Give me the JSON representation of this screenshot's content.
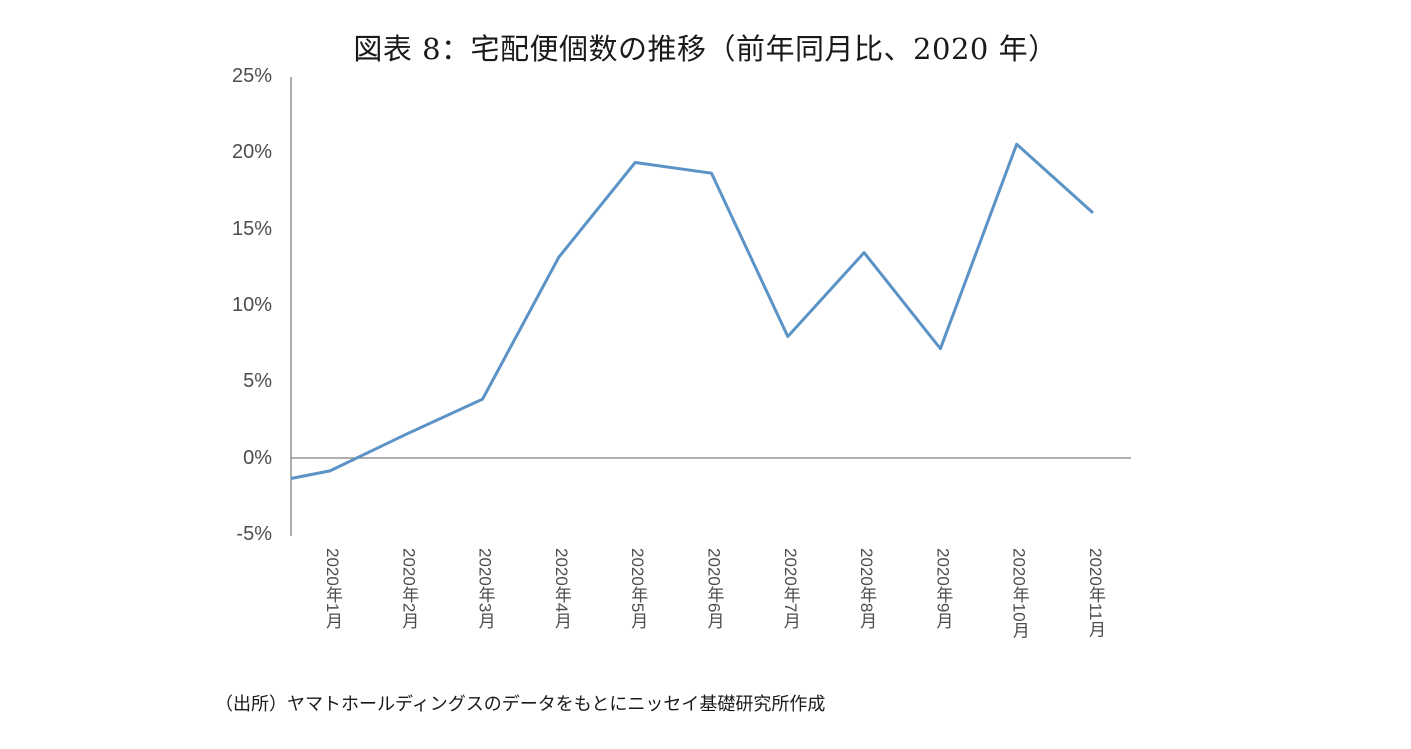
{
  "title": "図表 8：宅配便個数の推移（前年同月比、2020 年）",
  "source": "（出所）ヤマトホールディングスのデータをもとにニッセイ基礎研究所作成",
  "colors": {
    "line": "#5b93c6",
    "axis": "#808080",
    "text": "#4d4d4d"
  },
  "y_ticks": [
    "25%",
    "20%",
    "15%",
    "10%",
    "5%",
    "0%",
    "-5%"
  ],
  "x_ticks": [
    "2020年1月",
    "2020年2月",
    "2020年3月",
    "2020年4月",
    "2020年5月",
    "2020年6月",
    "2020年7月",
    "2020年8月",
    "2020年9月",
    "2020年10月",
    "2020年11月"
  ],
  "chart_data": {
    "type": "line",
    "title": "図表 8：宅配便個数の推移（前年同月比、2020 年）",
    "xlabel": "",
    "ylabel": "",
    "categories": [
      "2020年1月",
      "2020年2月",
      "2020年3月",
      "2020年4月",
      "2020年5月",
      "2020年6月",
      "2020年7月",
      "2020年8月",
      "2020年9月",
      "2020年10月",
      "2020年11月"
    ],
    "series": [
      {
        "name": "宅配便個数（前年同月比）",
        "values": [
          -0.8,
          1.6,
          3.9,
          13.2,
          19.4,
          18.7,
          8.0,
          13.5,
          7.2,
          20.6,
          16.1
        ]
      }
    ],
    "line_start_at_axis": -1.3,
    "ylim": [
      -5,
      25
    ],
    "y_tick_step": 5,
    "y_format": "percent",
    "grid": false,
    "legend": "none",
    "note": "（出所）ヤマトホールディングスのデータをもとにニッセイ基礎研究所作成"
  }
}
